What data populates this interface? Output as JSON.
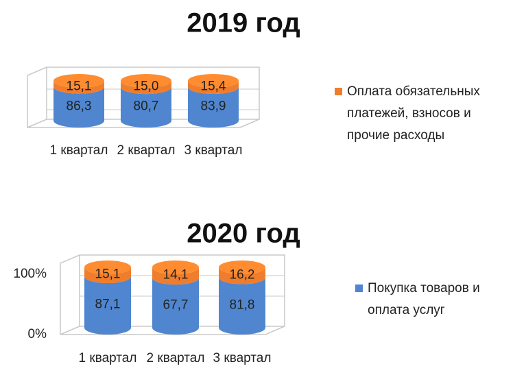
{
  "chart_data": [
    {
      "type": "bar",
      "stacked": true,
      "title": "2019 год",
      "categories": [
        "1 квартал",
        "2 квартал",
        "3 квартал"
      ],
      "series": [
        {
          "color": "#4f86cf",
          "values": [
            86.3,
            80.7,
            83.9
          ],
          "value_labels": [
            "86,3",
            "80,7",
            "83,9"
          ]
        },
        {
          "name": "Оплата обязательных платежей, взносов и прочие расходы",
          "color": "#ef7d2b",
          "values": [
            15.1,
            15.0,
            15.4
          ],
          "value_labels": [
            "15,1",
            "15,0",
            "15,4"
          ]
        }
      ]
    },
    {
      "type": "bar",
      "stacked": true,
      "title": "2020 год",
      "categories": [
        "1 квартал",
        "2 квартал",
        "3 квартал"
      ],
      "ylim": [
        0,
        100
      ],
      "yticks": [
        {
          "value": 0,
          "label": "0%"
        },
        {
          "value": 100,
          "label": "100%"
        }
      ],
      "series": [
        {
          "name": "Покупка товаров и оплата услуг",
          "color": "#4f86cf",
          "values": [
            87.1,
            67.7,
            81.8
          ],
          "value_labels": [
            "87,1",
            "67,7",
            "81,8"
          ]
        },
        {
          "color": "#ef7d2b",
          "values": [
            15.1,
            14.1,
            16.2
          ],
          "value_labels": [
            "15,1",
            "14,1",
            "16,2"
          ]
        }
      ]
    }
  ]
}
